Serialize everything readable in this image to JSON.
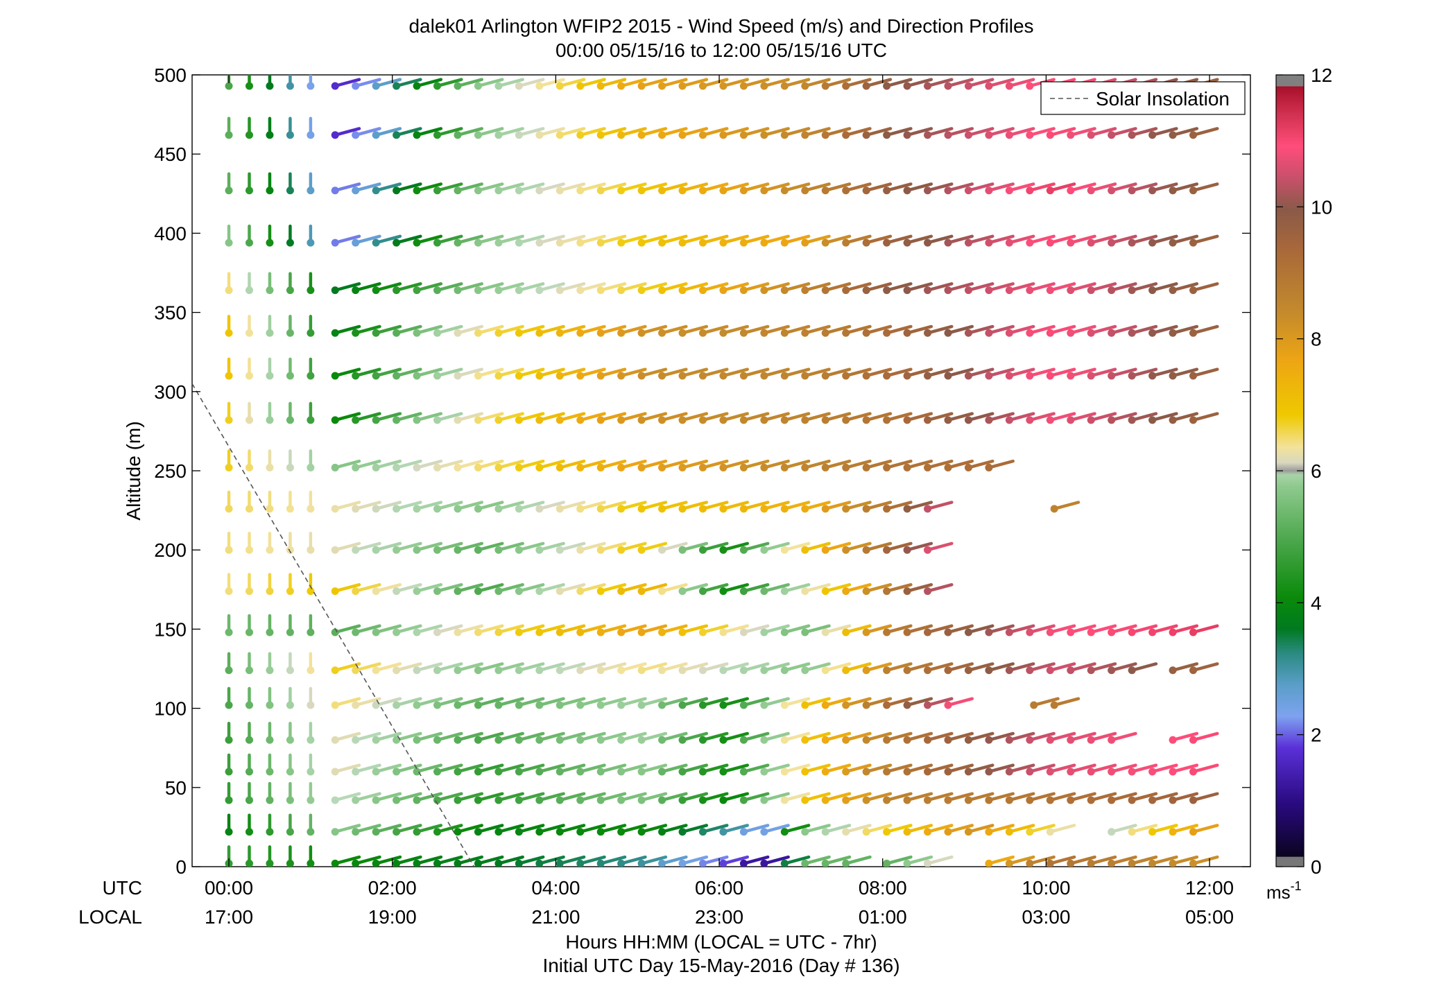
{
  "chart_data": {
    "type": "wind-barb-profile",
    "title": "dalek01 Arlington WFIP2 2015 - Wind Speed (m/s) and Direction Profiles",
    "subtitle": "00:00 05/15/16 to 12:00 05/15/16  UTC",
    "ylabel": "Altitude (m)",
    "xlabel": "Hours HH:MM  (LOCAL = UTC - 7hr)",
    "xlabel2": "Initial UTC Day 15-May-2016 (Day # 136)",
    "row_label_utc": "UTC",
    "row_label_local": "LOCAL",
    "xlim_hours": [
      -0.45,
      12.5
    ],
    "ylim": [
      0,
      500
    ],
    "yticks": [
      0,
      50,
      100,
      150,
      200,
      250,
      300,
      350,
      400,
      450,
      500
    ],
    "xticks_utc": [
      "00:00",
      "02:00",
      "04:00",
      "06:00",
      "08:00",
      "10:00",
      "12:00"
    ],
    "xticks_local": [
      "17:00",
      "19:00",
      "21:00",
      "23:00",
      "01:00",
      "03:00",
      "05:00"
    ],
    "legend": {
      "label": "Solar Insolation",
      "placement": "top-right"
    },
    "solar_insolation_line": {
      "x_hours": [
        -0.45,
        3.0
      ],
      "y_m": [
        305,
        0
      ]
    },
    "colorbar": {
      "min": 0,
      "max": 12,
      "ticks": [
        0,
        2,
        4,
        6,
        8,
        10,
        12
      ],
      "unit": "ms",
      "unit_exp": "-1"
    },
    "altitudes_m": [
      2,
      22,
      42,
      60,
      80,
      102,
      124,
      148,
      174,
      200,
      226,
      252,
      282,
      310,
      337,
      364,
      394,
      427,
      462,
      493
    ],
    "time_step_min": 15,
    "early_hours": [
      0,
      0.25,
      0.5,
      0.75,
      1.0
    ],
    "main_start_hour": 1.3,
    "dir_early_deg": 180,
    "dir_main_deg": 255,
    "stops_hour": {
      "174": 8.65,
      "200": 8.65,
      "226": 8.65,
      "252": 9.35,
      "102": 8.85
    },
    "gaps_hour": {
      "124": [
        [
          11.15,
          11.5
        ]
      ],
      "80": [
        [
          10.95,
          11.5
        ]
      ],
      "22": [
        [
          10.2,
          10.55
        ]
      ],
      "2": [
        [
          7.6,
          8.0
        ],
        [
          8.6,
          9.25
        ]
      ],
      "252": [
        [
          9.35,
          9.6
        ]
      ]
    },
    "extra_segments": [
      {
        "alt_m": 226,
        "start_hour": 10.1,
        "end_hour": 10.3,
        "speed": 8.6
      },
      {
        "alt_m": 102,
        "start_hour": 9.85,
        "end_hour": 10.3,
        "speed": 8.8
      }
    ],
    "speed_keyframes": [
      {
        "alt_m": 2,
        "hours": [
          0,
          1.3,
          3,
          5,
          6,
          6.5,
          7,
          8,
          10,
          12
        ],
        "speed": [
          4.5,
          4.0,
          3.6,
          3.0,
          1.8,
          0.6,
          5.2,
          5.0,
          9.0,
          8.2
        ]
      },
      {
        "alt_m": 22,
        "hours": [
          0,
          1.3,
          3,
          5,
          6,
          6.5,
          7,
          9,
          10.5,
          12
        ],
        "speed": [
          3.8,
          5.5,
          3.8,
          4.0,
          3.0,
          2.0,
          5.5,
          8.2,
          5.5,
          8.2
        ]
      },
      {
        "alt_m": 42,
        "hours": [
          0,
          1.3,
          3,
          5,
          6,
          7,
          8,
          10,
          12
        ],
        "speed": [
          4.5,
          6.0,
          4.4,
          5.5,
          3.8,
          7.0,
          8.6,
          9.0,
          9.6
        ]
      },
      {
        "alt_m": 60,
        "hours": [
          0,
          1.3,
          3,
          5,
          6,
          7,
          8,
          10,
          12
        ],
        "speed": [
          4.6,
          6.2,
          4.5,
          5.6,
          4.0,
          7.0,
          8.8,
          10.6,
          11.0
        ]
      },
      {
        "alt_m": 80,
        "hours": [
          0,
          1.3,
          3,
          5,
          6,
          7,
          8,
          10,
          12
        ],
        "speed": [
          4.6,
          6.2,
          4.8,
          5.8,
          4.0,
          7.0,
          8.8,
          10.6,
          11.0
        ]
      },
      {
        "alt_m": 102,
        "hours": [
          0,
          1.3,
          3,
          5,
          6,
          7,
          8.8
        ],
        "speed": [
          4.8,
          6.5,
          5.0,
          5.8,
          4.0,
          7.0,
          10.8
        ]
      },
      {
        "alt_m": 124,
        "hours": [
          0,
          1.3,
          3,
          5,
          7,
          8,
          10,
          12
        ],
        "speed": [
          5.0,
          6.8,
          5.5,
          6.5,
          5.5,
          8.6,
          10.5,
          9.4
        ]
      },
      {
        "alt_m": 148,
        "hours": [
          0,
          1.3,
          3,
          5,
          7,
          8,
          10,
          12
        ],
        "speed": [
          5.2,
          5.0,
          6.5,
          7.8,
          5.2,
          8.8,
          10.8,
          11.2
        ]
      },
      {
        "alt_m": 174,
        "hours": [
          0,
          1.3,
          3,
          5,
          6,
          7,
          8,
          8.65
        ],
        "speed": [
          6.5,
          7.0,
          4.8,
          7.5,
          4.0,
          6.2,
          8.8,
          10.5
        ]
      },
      {
        "alt_m": 200,
        "hours": [
          0,
          1.3,
          3,
          5,
          6,
          7,
          8.65
        ],
        "speed": [
          6.5,
          6.2,
          5.0,
          7.0,
          4.0,
          7.0,
          10.8
        ]
      },
      {
        "alt_m": 226,
        "hours": [
          0,
          1.3,
          3,
          5,
          7,
          8,
          8.65
        ],
        "speed": [
          6.6,
          6.3,
          5.5,
          7.0,
          7.5,
          9.0,
          10.6
        ]
      },
      {
        "alt_m": 252,
        "hours": [
          0,
          1.3,
          3,
          5,
          7,
          8,
          9.35,
          10.5
        ],
        "speed": [
          6.8,
          5.5,
          6.5,
          7.8,
          8.5,
          9.0,
          9.2,
          10.8
        ]
      },
      {
        "alt_m": 282,
        "hours": [
          0,
          1.3,
          3,
          5,
          7,
          8,
          10,
          12
        ],
        "speed": [
          6.8,
          4.0,
          6.5,
          8.2,
          8.6,
          9.0,
          10.8,
          9.4
        ]
      },
      {
        "alt_m": 310,
        "hours": [
          0,
          1.3,
          3,
          5,
          7,
          8,
          10,
          12
        ],
        "speed": [
          7.0,
          4.0,
          6.4,
          8.3,
          8.6,
          9.2,
          11.0,
          9.4
        ]
      },
      {
        "alt_m": 337,
        "hours": [
          0,
          1.3,
          3,
          5,
          7,
          8,
          10,
          12
        ],
        "speed": [
          7.0,
          3.8,
          6.5,
          8.2,
          8.6,
          9.2,
          11.0,
          9.4
        ]
      },
      {
        "alt_m": 364,
        "hours": [
          0,
          1.3,
          3,
          5,
          7,
          8,
          10,
          12
        ],
        "speed": [
          6.5,
          3.5,
          5.5,
          6.8,
          8.6,
          9.8,
          10.8,
          9.4
        ]
      },
      {
        "alt_m": 394,
        "hours": [
          0,
          1.3,
          3,
          5,
          7,
          8,
          10,
          12
        ],
        "speed": [
          5.5,
          2.0,
          5.5,
          7.0,
          7.8,
          9.5,
          11.0,
          9.4
        ]
      },
      {
        "alt_m": 427,
        "hours": [
          0,
          1.3,
          3,
          5,
          7,
          8,
          10,
          12
        ],
        "speed": [
          5.0,
          2.0,
          5.5,
          7.0,
          8.5,
          9.6,
          11.2,
          9.4
        ]
      },
      {
        "alt_m": 462,
        "hours": [
          0,
          1.3,
          3,
          5,
          7,
          8,
          10,
          12
        ],
        "speed": [
          5.0,
          1.5,
          5.5,
          7.5,
          8.5,
          9.8,
          11.0,
          9.4
        ]
      },
      {
        "alt_m": 493,
        "hours": [
          0,
          1.3,
          3,
          5,
          7,
          8,
          10,
          12
        ],
        "speed": [
          4.8,
          1.5,
          5.5,
          7.8,
          8.4,
          9.8,
          11.0,
          9.4
        ]
      }
    ]
  }
}
